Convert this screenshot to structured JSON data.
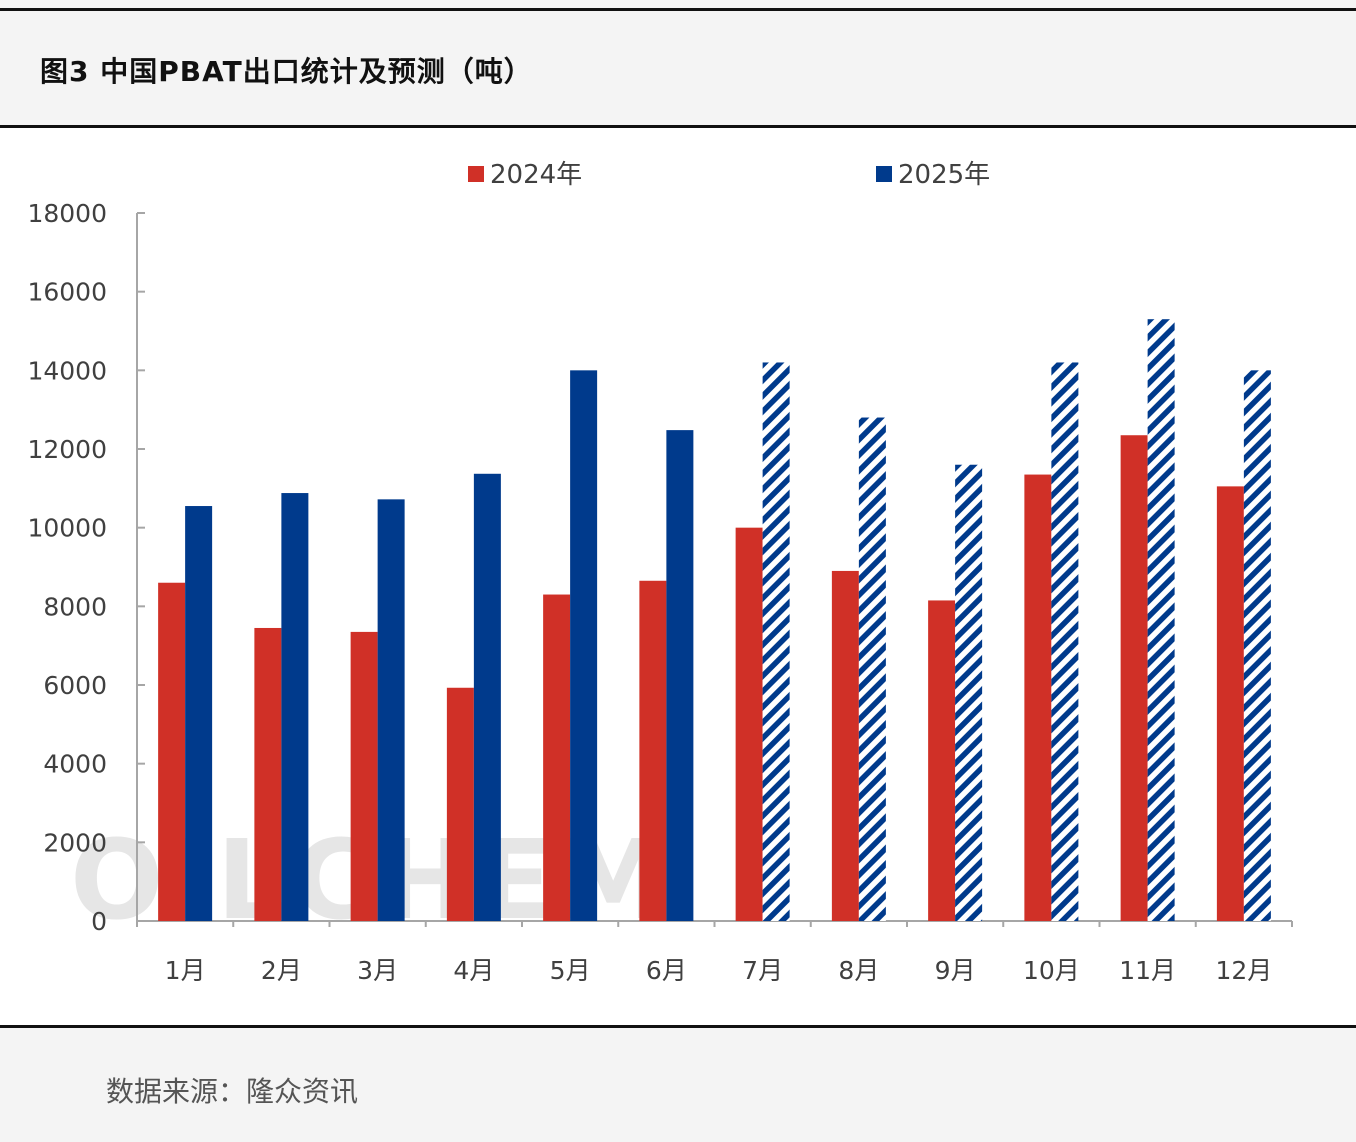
{
  "title": "图3 中国PBAT出口统计及预测（吨）",
  "source": "数据来源：隆众资讯",
  "watermark": "OILCHEM",
  "colors": {
    "series_2024": "#d03027",
    "series_2025": "#003a8c",
    "axis": "#a6a6a6"
  },
  "chart_data": {
    "type": "bar",
    "categories": [
      "1月",
      "2月",
      "3月",
      "4月",
      "5月",
      "6月",
      "7月",
      "8月",
      "9月",
      "10月",
      "11月",
      "12月"
    ],
    "series": [
      {
        "name": "2024年",
        "color": "#d03027",
        "values": [
          8600,
          7450,
          7350,
          5930,
          8300,
          8650,
          10000,
          8900,
          8150,
          11350,
          12350,
          11050
        ]
      },
      {
        "name": "2025年",
        "color": "#003a8c",
        "values": [
          10550,
          10880,
          10720,
          11370,
          14000,
          12480,
          14200,
          12800,
          11600,
          14200,
          15300,
          14000
        ],
        "forecast_from_index": 6
      }
    ],
    "yticks": [
      "0",
      "2000",
      "4000",
      "6000",
      "8000",
      "10000",
      "12000",
      "14000",
      "16000",
      "18000"
    ],
    "ylim": [
      0,
      18000
    ],
    "legend_position": "top",
    "grid": false
  }
}
